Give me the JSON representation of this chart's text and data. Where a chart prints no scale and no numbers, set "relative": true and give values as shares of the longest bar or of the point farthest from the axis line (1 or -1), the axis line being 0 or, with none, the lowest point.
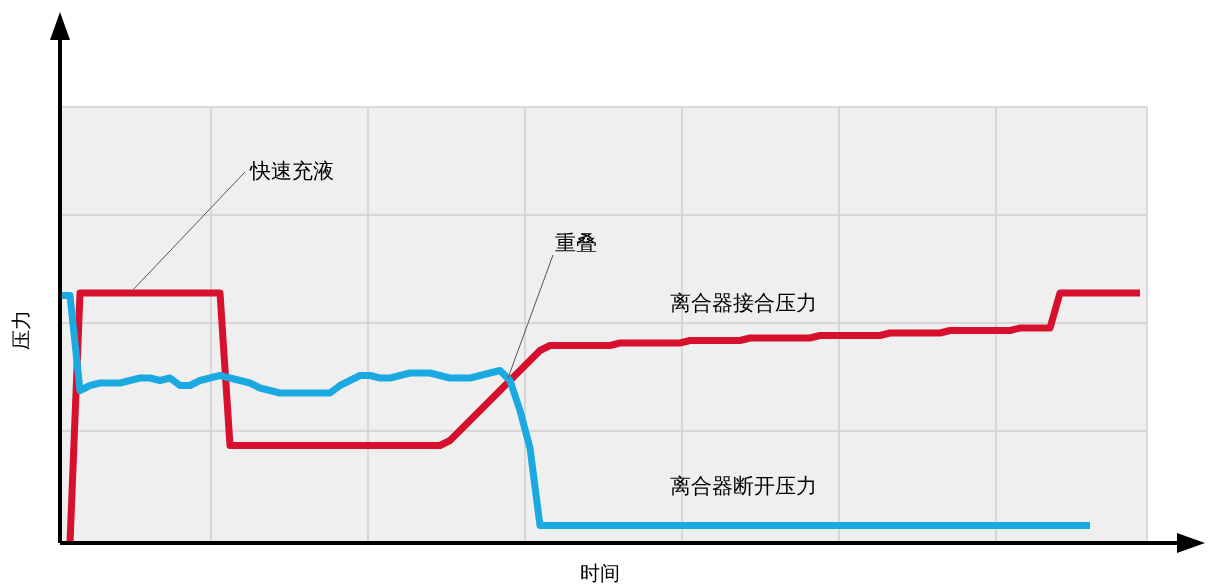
{
  "chart_data": {
    "type": "line",
    "relative": true,
    "grid": true,
    "xlabel": "时间",
    "ylabel": "压力",
    "categories": [
      null,
      null,
      null,
      null,
      null,
      null,
      null,
      null,
      null,
      null,
      null,
      null,
      null,
      null,
      null,
      null,
      null,
      null,
      null,
      null,
      null,
      null,
      null,
      null,
      null,
      null,
      null,
      null,
      null,
      null,
      null,
      null,
      null,
      null,
      null,
      null,
      null,
      null,
      null,
      null,
      null,
      null,
      null,
      null,
      null,
      null,
      null,
      null,
      null,
      null,
      null,
      null,
      null,
      null,
      null,
      null,
      null,
      null,
      null,
      null,
      null,
      null,
      null,
      null,
      null,
      null,
      null,
      null,
      null,
      null,
      null,
      null,
      null,
      null,
      null,
      null,
      null,
      null,
      null,
      null,
      null,
      null,
      null,
      null,
      null,
      null,
      null,
      null,
      null,
      null,
      null,
      null,
      null,
      null,
      null,
      null,
      null,
      null,
      null,
      null,
      null,
      null,
      null,
      null,
      null,
      null,
      null,
      null,
      null
    ],
    "series": [
      {
        "name": "离合器接合压力",
        "color": "#d7102e",
        "values": [
          null,
          0,
          1,
          1,
          1,
          1,
          1,
          1,
          1,
          1,
          1,
          1,
          1,
          1,
          1,
          1,
          1,
          0.39,
          0.39,
          0.39,
          0.39,
          0.39,
          0.39,
          0.39,
          0.39,
          0.39,
          0.39,
          0.39,
          0.39,
          0.39,
          0.39,
          0.39,
          0.39,
          0.39,
          0.39,
          0.39,
          0.39,
          0.39,
          0.39,
          0.41,
          0.45,
          0.49,
          0.53,
          0.57,
          0.61,
          0.65,
          0.69,
          0.73,
          0.77,
          0.79,
          0.79,
          0.79,
          0.79,
          0.79,
          0.79,
          0.79,
          0.8,
          0.8,
          0.8,
          0.8,
          0.8,
          0.8,
          0.8,
          0.81,
          0.81,
          0.81,
          0.81,
          0.81,
          0.81,
          0.82,
          0.82,
          0.82,
          0.82,
          0.82,
          0.82,
          0.82,
          0.83,
          0.83,
          0.83,
          0.83,
          0.83,
          0.83,
          0.83,
          0.84,
          0.84,
          0.84,
          0.84,
          0.84,
          0.84,
          0.85,
          0.85,
          0.85,
          0.85,
          0.85,
          0.85,
          0.85,
          0.86,
          0.86,
          0.86,
          0.86,
          1,
          1,
          1,
          1,
          1,
          1,
          1,
          1,
          1
        ]
      },
      {
        "name": "离合器断开压力",
        "color": "#1ba9e1",
        "values": [
          0.99,
          0.99,
          0.61,
          0.63,
          0.64,
          0.64,
          0.64,
          0.65,
          0.66,
          0.66,
          0.65,
          0.66,
          0.63,
          0.63,
          0.65,
          0.66,
          0.67,
          0.66,
          0.65,
          0.64,
          0.62,
          0.61,
          0.6,
          0.6,
          0.6,
          0.6,
          0.6,
          0.6,
          0.63,
          0.65,
          0.67,
          0.67,
          0.66,
          0.66,
          0.67,
          0.68,
          0.68,
          0.68,
          0.67,
          0.66,
          0.66,
          0.66,
          0.67,
          0.68,
          0.69,
          0.65,
          0.53,
          0.38,
          0.07,
          0.07,
          0.07,
          0.07,
          0.07,
          0.07,
          0.07,
          0.07,
          0.07,
          0.07,
          0.07,
          0.07,
          0.07,
          0.07,
          0.07,
          0.07,
          0.07,
          0.07,
          0.07,
          0.07,
          0.07,
          0.07,
          0.07,
          0.07,
          0.07,
          0.07,
          0.07,
          0.07,
          0.07,
          0.07,
          0.07,
          0.07,
          0.07,
          0.07,
          0.07,
          0.07,
          0.07,
          0.07,
          0.07,
          0.07,
          0.07,
          0.07,
          0.07,
          0.07,
          0.07,
          0.07,
          0.07,
          0.07,
          0.07,
          0.07,
          0.07,
          0.07,
          0.07,
          0.07,
          0.07,
          0.07,
          null,
          null,
          null,
          null,
          null
        ]
      }
    ],
    "annotations": [
      "快速充液",
      "重叠"
    ]
  }
}
